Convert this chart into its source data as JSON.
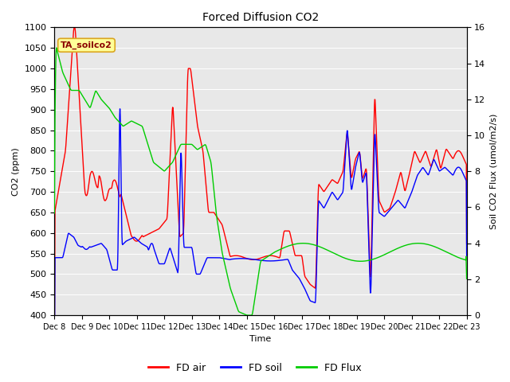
{
  "title": "Forced Diffusion CO2",
  "xlabel": "Time",
  "ylabel_left": "CO2 (ppm)",
  "ylabel_right": "Soil CO2 Flux (umol/m2/s)",
  "annotation_text": "TA_soilco2",
  "annotation_color": "#8B0000",
  "annotation_bg": "#FFFF99",
  "annotation_border": "#DAA520",
  "ylim_left": [
    400,
    1100
  ],
  "ylim_right": [
    0,
    16
  ],
  "yticks_left": [
    400,
    450,
    500,
    550,
    600,
    650,
    700,
    750,
    800,
    850,
    900,
    950,
    1000,
    1050,
    1100
  ],
  "yticks_right": [
    0,
    2,
    4,
    6,
    8,
    10,
    12,
    14,
    16
  ],
  "color_air": "#FF0000",
  "color_soil": "#0000FF",
  "color_flux": "#00CC00",
  "legend_labels": [
    "FD air",
    "FD soil",
    "FD Flux"
  ],
  "bg_color": "#E8E8E8",
  "line_width": 1.0,
  "fig_width": 6.4,
  "fig_height": 4.8,
  "dpi": 100
}
